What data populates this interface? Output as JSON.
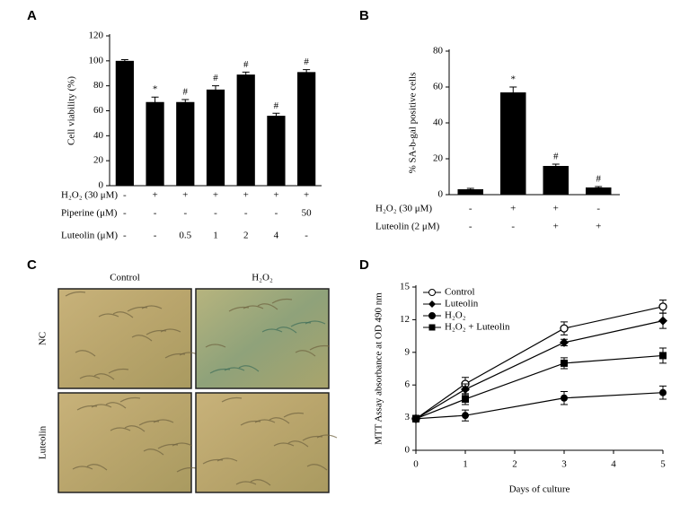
{
  "chart_data": [
    {
      "type": "bar",
      "panel": "A",
      "ylabel": "Cell viability (%)",
      "categories": [
        null,
        null,
        null,
        null,
        null,
        null,
        null
      ],
      "values": [
        100,
        67,
        67,
        77,
        89,
        56,
        91
      ],
      "errors": [
        1,
        4,
        2,
        3,
        2,
        2,
        2
      ],
      "bar_labels": [
        null,
        "*",
        "#",
        "#",
        "#",
        "#",
        "#"
      ],
      "color": "#000000",
      "ylim": [
        0,
        120
      ],
      "yticks": [
        0,
        20,
        40,
        60,
        80,
        100,
        120
      ],
      "conditions": [
        {
          "label": "H₂O₂ (30 μM)",
          "values": [
            "-",
            "+",
            "+",
            "+",
            "+",
            "+",
            "+"
          ]
        },
        {
          "label": "Piperine (μM)",
          "values": [
            "-",
            "-",
            "-",
            "-",
            "-",
            "-",
            "50"
          ]
        },
        {
          "label": "Luteolin (μM)",
          "values": [
            "-",
            "-",
            "0.5",
            "1",
            "2",
            "4",
            "-"
          ]
        }
      ]
    },
    {
      "type": "bar",
      "panel": "B",
      "ylabel": "% SA-b-gal positive cells",
      "categories": [
        null,
        null,
        null,
        null
      ],
      "values": [
        3,
        57,
        16,
        4
      ],
      "errors": [
        0.5,
        3,
        1,
        0.5
      ],
      "bar_labels": [
        null,
        "*",
        "#",
        "#"
      ],
      "color": "#000000",
      "ylim": [
        0,
        80
      ],
      "yticks": [
        0,
        20,
        40,
        60,
        80
      ],
      "conditions": [
        {
          "label": "H₂O₂ (30 μM)",
          "values": [
            "-",
            "+",
            "+",
            "-"
          ]
        },
        {
          "label": "Luteolin (2 μM)",
          "values": [
            "-",
            "-",
            "+",
            "+"
          ]
        }
      ]
    },
    {
      "type": "images",
      "panel": "C",
      "columns": [
        "Control",
        "H₂O₂"
      ],
      "rows": [
        "NC",
        "Luteolin"
      ]
    },
    {
      "type": "line",
      "panel": "D",
      "xlabel": "Days of culture",
      "ylabel": "MTT Assay absorbance at OD 490 nm",
      "x": [
        0,
        1,
        3,
        5
      ],
      "xlim": [
        0,
        5
      ],
      "xticks": [
        0,
        1,
        2,
        3,
        4,
        5
      ],
      "ylim": [
        0,
        15
      ],
      "yticks": [
        0,
        3,
        6,
        9,
        12,
        15
      ],
      "legend": "upper left",
      "series": [
        {
          "name": "Control",
          "marker": "open-circle",
          "color": "#000000",
          "values": [
            2.9,
            6.1,
            11.2,
            13.2
          ],
          "errors": [
            0.3,
            0.6,
            0.6,
            0.6
          ]
        },
        {
          "name": "Luteolin",
          "marker": "diamond",
          "color": "#000000",
          "values": [
            2.9,
            5.6,
            9.9,
            11.9
          ],
          "errors": [
            0.3,
            0.5,
            0.3,
            0.7
          ]
        },
        {
          "name": "H₂O₂",
          "marker": "circle",
          "color": "#000000",
          "values": [
            2.9,
            3.2,
            4.8,
            5.3
          ],
          "errors": [
            0.3,
            0.5,
            0.6,
            0.6
          ]
        },
        {
          "name": "H₂O₂ + Luteolin",
          "marker": "square",
          "color": "#000000",
          "values": [
            2.9,
            4.7,
            8.0,
            8.7
          ],
          "errors": [
            0.3,
            0.5,
            0.5,
            0.7
          ]
        }
      ]
    }
  ]
}
